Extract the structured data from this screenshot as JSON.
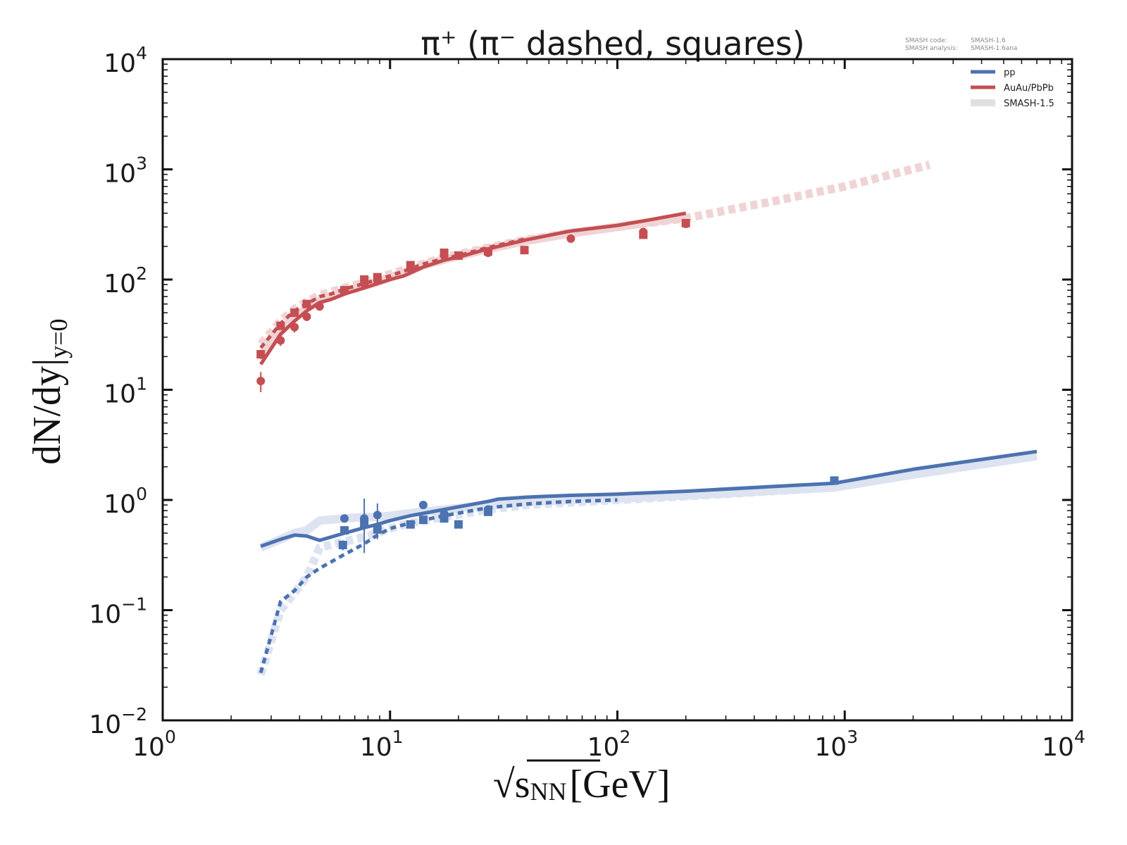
{
  "chart_data": {
    "type": "line",
    "title": "π⁺ (π⁻ dashed, squares)",
    "title_parts": {
      "main": "π",
      "sup1": "+",
      "mid": " (π",
      "sup2": "−",
      "rest": " dashed, squares)"
    },
    "xlabel": "√sNN [GeV]",
    "xlabel_parts": {
      "root": "√",
      "s": "s",
      "sub": "NN",
      "unit": "[GeV]"
    },
    "ylabel": "dN/dy|y=0",
    "ylabel_parts": {
      "main": "dN/dy|",
      "sub": "y=0"
    },
    "xscale": "log",
    "yscale": "log",
    "xlim": [
      1,
      10000
    ],
    "ylim": [
      0.01,
      10000
    ],
    "grid": false,
    "legend_position": "top-right",
    "x_ticks": [
      {
        "value": 1,
        "base": "10",
        "exp": "0"
      },
      {
        "value": 10,
        "base": "10",
        "exp": "1"
      },
      {
        "value": 100,
        "base": "10",
        "exp": "2"
      },
      {
        "value": 1000,
        "base": "10",
        "exp": "3"
      },
      {
        "value": 10000,
        "base": "10",
        "exp": "4"
      }
    ],
    "y_ticks": [
      {
        "value": 0.01,
        "base": "10",
        "exp": "−2"
      },
      {
        "value": 0.1,
        "base": "10",
        "exp": "−1"
      },
      {
        "value": 1,
        "base": "10",
        "exp": "0"
      },
      {
        "value": 10,
        "base": "10",
        "exp": "1"
      },
      {
        "value": 100,
        "base": "10",
        "exp": "2"
      },
      {
        "value": 1000,
        "base": "10",
        "exp": "3"
      },
      {
        "value": 10000,
        "base": "10",
        "exp": "4"
      }
    ],
    "colors": {
      "pp": "#4C72B0",
      "AA": "#C44E52",
      "ref_pp": "#DDE3F0",
      "ref_AA": "#F0D4D5",
      "legend_ref": "#E0E0E0"
    },
    "legend": [
      {
        "label": "pp",
        "color": "#4C72B0"
      },
      {
        "label": "AuAu/PbPb",
        "color": "#C44E52"
      },
      {
        "label": "SMASH-1.5",
        "color": "#E0E0E0"
      }
    ],
    "annotation": {
      "line1_key": "SMASH code:",
      "line1_val": "SMASH-1.6",
      "line2_key": "SMASH analysis:",
      "line2_val": "SMASH-1.6ana"
    },
    "series": [
      {
        "name": "SMASH-1.5 AuAu/PbPb π+",
        "style": "reference-solid",
        "color": "#F0D4D5",
        "x": [
          2.7,
          3.3,
          3.8,
          4.3,
          4.9,
          6.3,
          7.7,
          8.8,
          10,
          12.3,
          14,
          17.3,
          20,
          27,
          40,
          62,
          100,
          130,
          200
        ],
        "y": [
          19,
          34,
          45,
          55,
          64,
          78,
          88,
          95,
          105,
          120,
          135,
          152,
          163,
          190,
          225,
          262,
          300,
          325,
          370
        ]
      },
      {
        "name": "SMASH-1.5 AuAu/PbPb π−",
        "style": "reference-dashed",
        "color": "#F0D4D5",
        "x": [
          2.7,
          3.3,
          3.8,
          4.3,
          4.9,
          6.3,
          7.7,
          8.8,
          10,
          12.3,
          17.3,
          27,
          40,
          62,
          100,
          200,
          500,
          1000,
          2360
        ],
        "y": [
          26,
          42,
          54,
          63,
          72,
          84,
          94,
          102,
          112,
          128,
          158,
          195,
          230,
          265,
          300,
          360,
          520,
          700,
          1100
        ]
      },
      {
        "name": "SMASH-1.5 pp π+",
        "style": "reference-solid",
        "color": "#DDE3F0",
        "x": [
          2.7,
          3.3,
          3.8,
          4.3,
          4.9,
          6.3,
          7.7,
          8.8,
          10,
          12.3,
          17.3,
          27,
          40,
          62,
          100,
          200,
          900,
          2000,
          7000
        ],
        "y": [
          0.37,
          0.44,
          0.5,
          0.53,
          0.65,
          0.68,
          0.7,
          0.7,
          0.72,
          0.76,
          0.82,
          0.9,
          0.95,
          1.0,
          1.03,
          1.1,
          1.3,
          1.7,
          2.5
        ]
      },
      {
        "name": "SMASH-1.5 pp π−",
        "style": "reference-dashed",
        "color": "#DDE3F0",
        "x": [
          2.7,
          3.3,
          4.3,
          4.9,
          6.3,
          7.7,
          8.8,
          10,
          12.3,
          17.3,
          27,
          40,
          62,
          100,
          200,
          900,
          2000,
          7000
        ],
        "y": [
          0.026,
          0.1,
          0.2,
          0.37,
          0.42,
          0.46,
          0.5,
          0.55,
          0.62,
          0.7,
          0.82,
          0.9,
          0.95,
          1.0,
          1.08,
          1.3,
          1.7,
          2.5
        ]
      },
      {
        "name": "AuAu/PbPb π+",
        "style": "solid",
        "color": "#C44E52",
        "x": [
          2.7,
          3.3,
          3.8,
          4.3,
          4.9,
          5.5,
          6.3,
          7.7,
          8.8,
          10,
          11.5,
          12.3,
          14,
          17.3,
          20,
          27,
          40,
          62,
          100,
          130,
          200
        ],
        "y": [
          17,
          32,
          42,
          52,
          62,
          66,
          74,
          84,
          92,
          100,
          108,
          115,
          130,
          150,
          160,
          190,
          230,
          275,
          310,
          340,
          400
        ]
      },
      {
        "name": "AuAu/PbPb π−",
        "style": "dashed",
        "color": "#C44E52",
        "x": [
          2.7,
          3.3,
          3.8,
          4.3,
          4.9,
          5.5,
          6.3,
          7.7,
          8.8,
          10,
          12.3,
          14,
          17.3,
          20,
          27,
          40
        ],
        "y": [
          24,
          40,
          52,
          60,
          70,
          74,
          82,
          92,
          100,
          108,
          125,
          138,
          155,
          165,
          195,
          235
        ]
      },
      {
        "name": "pp π+",
        "style": "solid",
        "color": "#4C72B0",
        "x": [
          2.7,
          3.3,
          3.8,
          4.3,
          4.9,
          6.3,
          7.7,
          8.8,
          10,
          12.3,
          17.3,
          27,
          30,
          40,
          62,
          100,
          200,
          900,
          2000,
          7000
        ],
        "y": [
          0.38,
          0.44,
          0.48,
          0.47,
          0.43,
          0.5,
          0.56,
          0.6,
          0.65,
          0.72,
          0.82,
          0.97,
          1.02,
          1.06,
          1.1,
          1.13,
          1.2,
          1.42,
          1.9,
          2.75
        ]
      },
      {
        "name": "pp π−",
        "style": "dashed",
        "color": "#4C72B0",
        "x": [
          2.7,
          3.3,
          3.8,
          4.3,
          4.9,
          6.3,
          7.7,
          8.8,
          10,
          12.3,
          17.3,
          27,
          40,
          62,
          100
        ],
        "y": [
          0.027,
          0.12,
          0.15,
          0.2,
          0.24,
          0.32,
          0.4,
          0.48,
          0.55,
          0.62,
          0.72,
          0.85,
          0.92,
          0.97,
          1.0
        ]
      }
    ],
    "data_points": [
      {
        "name": "AA π+ data",
        "marker": "circle",
        "color": "#C44E52",
        "x": [
          2.7,
          3.3,
          3.8,
          4.3,
          4.9,
          6.3,
          7.7,
          8.8,
          12.3,
          17.3,
          27,
          62.4,
          130,
          200
        ],
        "y": [
          12,
          28,
          37,
          46,
          57,
          78,
          92,
          98,
          125,
          165,
          175,
          235,
          270,
          320
        ],
        "err": [
          2.5,
          3,
          4,
          4,
          3,
          5,
          6,
          6,
          8,
          10,
          12,
          0,
          15,
          25
        ]
      },
      {
        "name": "AA π− data",
        "marker": "square",
        "color": "#C44E52",
        "x": [
          2.7,
          3.3,
          3.8,
          4.3,
          6.3,
          7.7,
          8.8,
          12.3,
          17.3,
          20,
          27,
          39,
          130,
          200
        ],
        "y": [
          21,
          38,
          50,
          60,
          80,
          100,
          105,
          135,
          175,
          165,
          180,
          185,
          255,
          325
        ],
        "err": [
          2,
          3,
          4,
          4,
          5,
          6,
          6,
          8,
          10,
          10,
          12,
          12,
          15,
          25
        ]
      },
      {
        "name": "pp π+ data",
        "marker": "circle",
        "color": "#4C72B0",
        "x": [
          6.3,
          7.7,
          8.8,
          14,
          17.3,
          27
        ],
        "y": [
          0.68,
          0.68,
          0.73,
          0.9,
          0.75,
          0.82
        ],
        "err": [
          0.03,
          0.35,
          0.2,
          0.05,
          0.1,
          0.05
        ]
      },
      {
        "name": "pp π− data",
        "marker": "square",
        "color": "#4C72B0",
        "x": [
          6.2,
          6.3,
          7.7,
          8.8,
          12.3,
          14,
          17.3,
          20,
          27,
          900
        ],
        "y": [
          0.39,
          0.53,
          0.62,
          0.54,
          0.6,
          0.66,
          0.68,
          0.6,
          0.78,
          1.5
        ],
        "err": [
          0.04,
          0.04,
          0.1,
          0.1,
          0.05,
          0.05,
          0.05,
          0.04,
          0.05,
          0.06
        ]
      }
    ]
  }
}
